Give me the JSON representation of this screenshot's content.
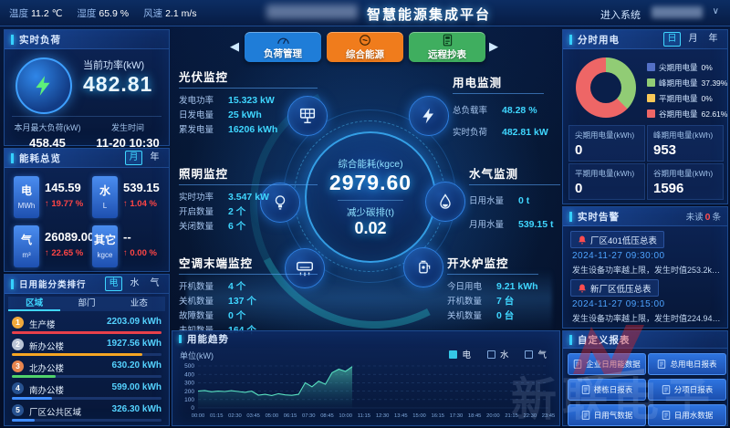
{
  "topbar": {
    "title": "智慧能源集成平台",
    "enter_system": "进入系统",
    "weather": [
      {
        "label": "温度",
        "value": "11.2 ℃"
      },
      {
        "label": "湿度",
        "value": "65.9 %"
      },
      {
        "label": "风速",
        "value": "2.1 m/s"
      }
    ]
  },
  "realtime_load": {
    "title": "实时负荷",
    "current_power_label": "当前功率(kW)",
    "current_power": "482.81",
    "max_load_label": "本月最大负荷(kW)",
    "max_load": "458.45",
    "occur_time_label": "发生时间",
    "occur_time": "11-20 10:30"
  },
  "energy_overview": {
    "title": "能耗总览",
    "tabs": [
      "月",
      "年"
    ],
    "active_tab": "月",
    "items": [
      {
        "name": "电",
        "unit": "MWh",
        "value": "145.59",
        "trend": "↑ 19.77 %"
      },
      {
        "name": "水",
        "unit": "L",
        "value": "539.15",
        "trend": "↑ 1.04 %"
      },
      {
        "name": "气",
        "unit": "m³",
        "value": "26089.00",
        "trend": "↑ 22.65 %"
      },
      {
        "name": "其它",
        "unit": "kgce",
        "value": "--",
        "trend": "↑ 0.00 %"
      }
    ]
  },
  "ranking": {
    "title": "日用能分类排行",
    "tabs": [
      "电",
      "水",
      "气"
    ],
    "active_tab": "电",
    "columns": [
      "区域",
      "部门",
      "业态"
    ],
    "active_column": "区域",
    "rows": [
      {
        "rank": "1",
        "name": "生产楼",
        "value": "2203.09 kWh",
        "bar_pct": 100,
        "bar_color": "#e8404a",
        "badge_color": "#f2a93b"
      },
      {
        "rank": "2",
        "name": "新办公楼",
        "value": "1927.56 kWh",
        "bar_pct": 87,
        "bar_color": "#f5a623",
        "badge_color": "#b9c4d6"
      },
      {
        "rank": "3",
        "name": "北办公楼",
        "value": "630.20 kWh",
        "bar_pct": 29,
        "bar_color": "#4fd26b",
        "badge_color": "#e8854e"
      },
      {
        "rank": "4",
        "name": "南办公楼",
        "value": "599.00 kWh",
        "bar_pct": 27,
        "bar_color": "#3f8cff",
        "badge_color": "#27518f"
      },
      {
        "rank": "5",
        "name": "厂区公共区域",
        "value": "326.30 kWh",
        "bar_pct": 15,
        "bar_color": "#3f8cff",
        "badge_color": "#27518f"
      }
    ]
  },
  "nav_buttons": [
    {
      "label": "负荷管理",
      "color": "#1f7dd8",
      "icon": "gauge-icon"
    },
    {
      "label": "综合能源",
      "color": "#f07c1c",
      "icon": "energy-coin-icon"
    },
    {
      "label": "远程抄表",
      "color": "#3fae5f",
      "icon": "meter-icon"
    }
  ],
  "pv": {
    "title": "光伏监控",
    "rows": [
      {
        "label": "发电功率",
        "value": "15.323 kW"
      },
      {
        "label": "日发电量",
        "value": "25 kWh"
      },
      {
        "label": "累发电量",
        "value": "16206 kWh"
      }
    ]
  },
  "lighting": {
    "title": "照明监控",
    "rows": [
      {
        "label": "实时功率",
        "value": "3.547 kW"
      },
      {
        "label": "开启数量",
        "value": "2 个"
      },
      {
        "label": "关闭数量",
        "value": "6 个"
      }
    ]
  },
  "ac": {
    "title": "空调末端监控",
    "rows": [
      {
        "label": "开机数量",
        "value": "4 个"
      },
      {
        "label": "关机数量",
        "value": "137 个"
      },
      {
        "label": "故障数量",
        "value": "0 个"
      },
      {
        "label": "未知数量",
        "value": "164 个"
      }
    ]
  },
  "power_mon": {
    "title": "用电监测",
    "rows": [
      {
        "label": "总负载率",
        "value": "48.28 %"
      },
      {
        "label": "实时负荷",
        "value": "482.81 kW"
      }
    ]
  },
  "water_gas": {
    "title": "水气监测",
    "rows": [
      {
        "label": "日用水量",
        "value": "0 t"
      },
      {
        "label": "月用水量",
        "value": "539.15 t"
      }
    ]
  },
  "boiler": {
    "title": "开水炉监控",
    "rows": [
      {
        "label": "今日用电",
        "value": "9.21 kWh"
      },
      {
        "label": "开机数量",
        "value": "7 台"
      },
      {
        "label": "关机数量",
        "value": "0 台"
      }
    ]
  },
  "center": {
    "total_label": "综合能耗(kgce)",
    "total_value": "2979.60",
    "carbon_label": "减少碳排(t)",
    "carbon_value": "0.02"
  },
  "tou": {
    "title": "分时用电",
    "tabs": [
      "日",
      "月",
      "年"
    ],
    "active_tab": "日",
    "legend": [
      {
        "label": "尖期用电量",
        "pct": "0%",
        "color": "#5470c6"
      },
      {
        "label": "峰期用电量",
        "pct": "37.39%",
        "color": "#91cc75"
      },
      {
        "label": "平期用电量",
        "pct": "0%",
        "color": "#fac858"
      },
      {
        "label": "谷期用电量",
        "pct": "62.61%",
        "color": "#ee6666"
      }
    ],
    "stats": [
      {
        "label": "尖期用电量(kWh)",
        "value": "0"
      },
      {
        "label": "峰期用电量(kWh)",
        "value": "953"
      },
      {
        "label": "平期用电量(kWh)",
        "value": "0"
      },
      {
        "label": "谷期用电量(kWh)",
        "value": "1596"
      }
    ]
  },
  "alerts": {
    "title": "实时告警",
    "unread_label": "未读",
    "unread_count": "0",
    "unread_unit": "条",
    "items": [
      {
        "name": "厂区401低压总表",
        "time": "2024-11-27 09:30:00",
        "desc": "发生设备功率越上限，发生时值253.2kW，…"
      },
      {
        "name": "新厂区低压总表",
        "time": "2024-11-27 09:15:00",
        "desc": "发生设备功率越上限，发生时值224.94kW…"
      }
    ]
  },
  "reports": {
    "title": "自定义报表",
    "buttons": [
      "企业日用能数据",
      "总用电日报表",
      "楼栋日报表",
      "分项日报表",
      "日用气数据",
      "日用水数据"
    ]
  },
  "watermark": {
    "text": "新联电子"
  },
  "chart_data": [
    {
      "type": "area",
      "title": "用能趋势",
      "ylabel": "单位(kW)",
      "legend": [
        "电",
        "水",
        "气"
      ],
      "selected_legend": "电",
      "ylim": [
        0,
        500
      ],
      "y_ticks": [
        0,
        100,
        200,
        300,
        400,
        500
      ],
      "x_ticks": [
        "00:00",
        "01:15",
        "02:30",
        "03:45",
        "05:00",
        "06:15",
        "07:30",
        "08:45",
        "10:00",
        "11:15",
        "12:30",
        "13:45",
        "15:00",
        "16:15",
        "17:30",
        "18:45",
        "20:00",
        "21:15",
        "22:30",
        "23:45"
      ],
      "series": [
        {
          "name": "电",
          "color": "#58e0c0",
          "x_start_fraction": 0,
          "x_end_fraction": 0.44,
          "values": [
            200,
            208,
            192,
            200,
            196,
            205,
            196,
            186,
            200,
            152,
            162,
            148,
            170,
            155,
            150,
            162,
            300,
            252,
            318,
            282,
            420,
            462,
            435,
            492
          ]
        }
      ]
    },
    {
      "type": "pie",
      "title": "分时用电",
      "slices": [
        {
          "label": "尖期用电量",
          "pct": 0,
          "color": "#5470c6"
        },
        {
          "label": "峰期用电量",
          "pct": 37.39,
          "color": "#91cc75"
        },
        {
          "label": "平期用电量",
          "pct": 0,
          "color": "#fac858"
        },
        {
          "label": "谷期用电量",
          "pct": 62.61,
          "color": "#ee6666"
        }
      ]
    }
  ]
}
